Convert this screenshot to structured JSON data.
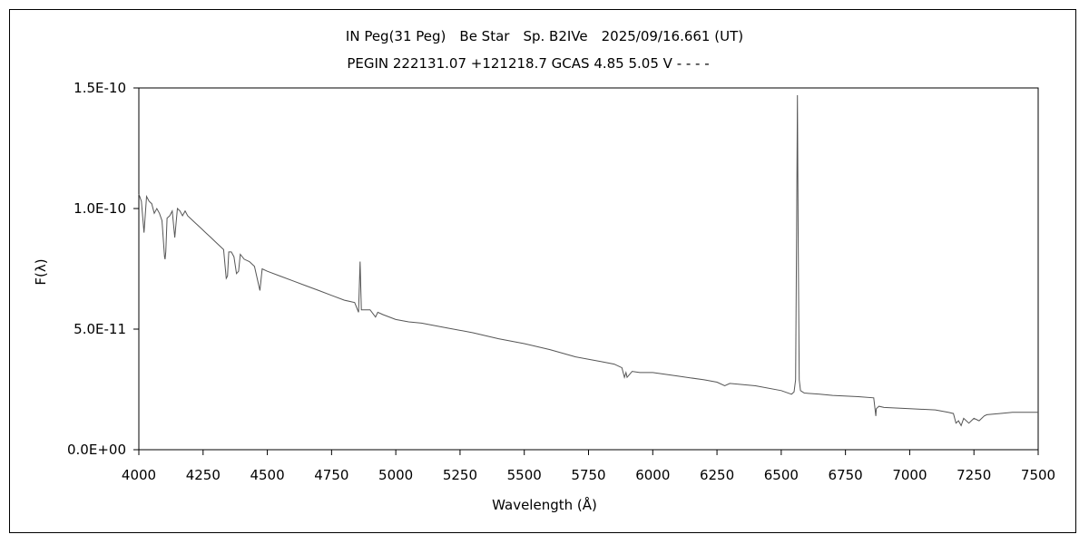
{
  "chart_data": {
    "type": "line",
    "title": "IN Peg(31 Peg)　Be Star　Sp. B2IVe　2025/09/16.661 (UT)",
    "subtitle": "PEGIN 222131.07 +121218.7 GCAS 4.85 5.05 V - - - -",
    "xlabel": "Wavelength (Å)",
    "ylabel": "F(λ)",
    "xlim": [
      4000,
      7500
    ],
    "ylim": [
      0,
      1.5e-10
    ],
    "x_ticks": [
      4000,
      4250,
      4500,
      4750,
      5000,
      5250,
      5500,
      5750,
      6000,
      6250,
      6500,
      6750,
      7000,
      7250,
      7500
    ],
    "x_tick_labels": [
      "4000",
      "4250",
      "4500",
      "4750",
      "5000",
      "5250",
      "5500",
      "5750",
      "6000",
      "6250",
      "6500",
      "6750",
      "7000",
      "7250",
      "7500"
    ],
    "y_ticks": [
      0,
      5e-11,
      1e-10,
      1.5e-10
    ],
    "y_tick_labels": [
      "0.0E+00",
      "5.0E-11",
      "1.0E-10",
      "1.5E-10"
    ],
    "grid": false,
    "line_color": "#555555",
    "series": [
      {
        "x": [
          4000,
          4010,
          4020,
          4030,
          4040,
          4050,
          4060,
          4070,
          4080,
          4090,
          4100,
          4102,
          4105,
          4110,
          4120,
          4130,
          4140,
          4150,
          4160,
          4170,
          4180,
          4190,
          4200,
          4220,
          4240,
          4260,
          4280,
          4300,
          4320,
          4330,
          4340,
          4345,
          4350,
          4360,
          4370,
          4380,
          4388,
          4395,
          4410,
          4430,
          4450,
          4471,
          4480,
          4500,
          4550,
          4600,
          4650,
          4700,
          4750,
          4800,
          4840,
          4855,
          4861,
          4866,
          4875,
          4890,
          4900,
          4921,
          4930,
          4950,
          5000,
          5050,
          5100,
          5200,
          5300,
          5400,
          5500,
          5600,
          5700,
          5800,
          5850,
          5880,
          5890,
          5896,
          5900,
          5920,
          5950,
          6000,
          6100,
          6200,
          6250,
          6280,
          6300,
          6400,
          6500,
          6540,
          6550,
          6556,
          6560,
          6563,
          6566,
          6570,
          6575,
          6590,
          6650,
          6700,
          6800,
          6860,
          6868,
          6870,
          6880,
          6900,
          7000,
          7100,
          7150,
          7170,
          7180,
          7190,
          7200,
          7210,
          7230,
          7250,
          7270,
          7290,
          7300,
          7350,
          7400,
          7450,
          7500
        ],
        "values": [
          1.06e-10,
          1.03e-10,
          9e-11,
          1.05e-10,
          1.03e-10,
          1.02e-10,
          9.8e-11,
          1e-10,
          9.8e-11,
          9.5e-11,
          8e-11,
          7.9e-11,
          8.2e-11,
          9.6e-11,
          9.7e-11,
          9.9e-11,
          8.8e-11,
          1e-10,
          9.9e-11,
          9.7e-11,
          9.9e-11,
          9.7e-11,
          9.6e-11,
          9.4e-11,
          9.2e-11,
          9e-11,
          8.8e-11,
          8.6e-11,
          8.4e-11,
          8.3e-11,
          7.1e-11,
          7.2e-11,
          8.2e-11,
          8.2e-11,
          8e-11,
          7.3e-11,
          7.4e-11,
          8.1e-11,
          7.9e-11,
          7.8e-11,
          7.6e-11,
          6.6e-11,
          7.5e-11,
          7.4e-11,
          7.2e-11,
          7e-11,
          6.8e-11,
          6.6e-11,
          6.4e-11,
          6.2e-11,
          6.1e-11,
          5.7e-11,
          7.8e-11,
          5.8e-11,
          5.8e-11,
          5.8e-11,
          5.8e-11,
          5.5e-11,
          5.7e-11,
          5.6e-11,
          5.4e-11,
          5.3e-11,
          5.25e-11,
          5.05e-11,
          4.85e-11,
          4.6e-11,
          4.4e-11,
          4.15e-11,
          3.85e-11,
          3.65e-11,
          3.55e-11,
          3.4e-11,
          3e-11,
          3.2e-11,
          3e-11,
          3.25e-11,
          3.2e-11,
          3.2e-11,
          3.05e-11,
          2.9e-11,
          2.8e-11,
          2.65e-11,
          2.75e-11,
          2.65e-11,
          2.45e-11,
          2.3e-11,
          2.4e-11,
          2.9e-11,
          9e-11,
          1.47e-10,
          9e-11,
          2.9e-11,
          2.45e-11,
          2.35e-11,
          2.3e-11,
          2.25e-11,
          2.2e-11,
          2.15e-11,
          1.4e-11,
          1.7e-11,
          1.8e-11,
          1.75e-11,
          1.7e-11,
          1.65e-11,
          1.55e-11,
          1.5e-11,
          1.1e-11,
          1.2e-11,
          1e-11,
          1.3e-11,
          1.1e-11,
          1.3e-11,
          1.2e-11,
          1.4e-11,
          1.45e-11,
          1.5e-11,
          1.55e-11,
          1.55e-11,
          1.55e-11
        ]
      }
    ]
  }
}
